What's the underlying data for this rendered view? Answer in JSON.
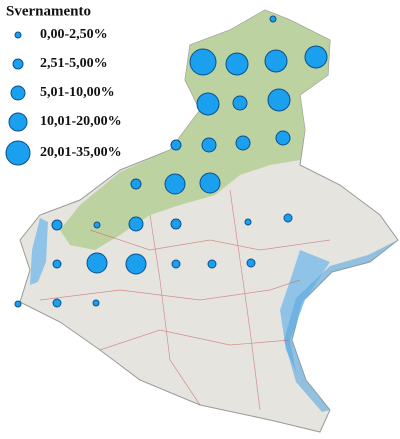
{
  "legend": {
    "title": "Svernamento",
    "items": [
      "0,00-2,50%",
      "2,51-5,00%",
      "5,01-10,00%",
      "10,01-20,00%",
      "20,01-35,00%"
    ]
  }
}
